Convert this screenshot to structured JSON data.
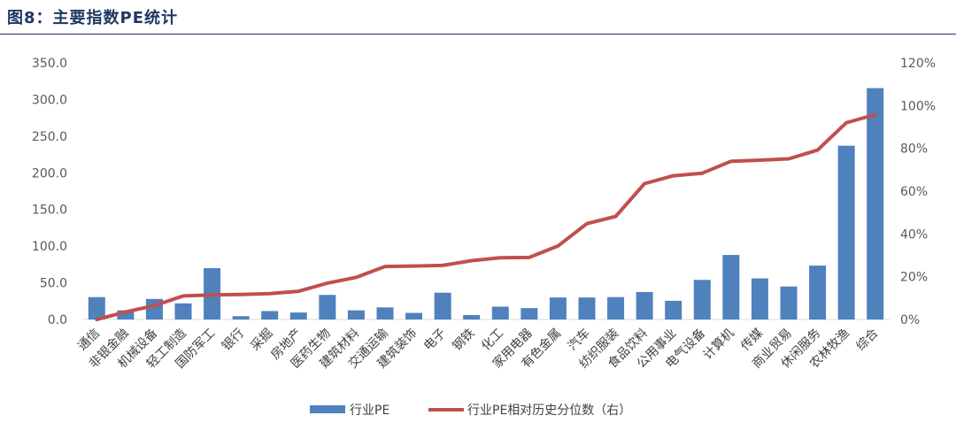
{
  "figure": {
    "title": "图8：主要指数PE统计"
  },
  "chart_data": {
    "type": "bar",
    "categories": [
      "通信",
      "非银金融",
      "机械设备",
      "轻工制造",
      "国防军工",
      "银行",
      "采掘",
      "房地产",
      "医药生物",
      "建筑材料",
      "交通运输",
      "建筑装饰",
      "电子",
      "钢铁",
      "化工",
      "家用电器",
      "有色金属",
      "汽车",
      "纺织服装",
      "食品饮料",
      "公用事业",
      "电气设备",
      "计算机",
      "传媒",
      "商业贸易",
      "休闲服务",
      "农林牧渔",
      "综合"
    ],
    "series": [
      {
        "name": "行业PE",
        "type": "bar",
        "axis": "left",
        "color": "#4f81bd",
        "values": [
          30.5,
          12.5,
          28.0,
          22.0,
          70.0,
          4.5,
          11.5,
          9.5,
          33.5,
          12.5,
          16.5,
          9.0,
          36.5,
          6.0,
          17.5,
          15.5,
          30.0,
          30.0,
          30.5,
          37.5,
          25.5,
          54.0,
          88.0,
          56.0,
          45.0,
          73.5,
          237.0,
          315.5
        ]
      },
      {
        "name": "行业PE相对历史分位数（右）",
        "type": "line",
        "axis": "right",
        "color": "#c0504d",
        "values": [
          0.0,
          3.5,
          6.5,
          11.0,
          11.5,
          11.7,
          12.1,
          13.2,
          17.0,
          19.7,
          24.8,
          25.0,
          25.3,
          27.5,
          28.9,
          29.0,
          34.4,
          44.8,
          48.2,
          63.5,
          67.2,
          68.4,
          74.0,
          74.5,
          75.1,
          79.2,
          92.0,
          95.8
        ]
      }
    ],
    "y_left": {
      "min": 0,
      "max": 350,
      "ticks": [
        "0.0",
        "50.0",
        "100.0",
        "150.0",
        "200.0",
        "250.0",
        "300.0",
        "350.0"
      ]
    },
    "y_right": {
      "min": 0,
      "max": 120,
      "ticks": [
        "0%",
        "20%",
        "40%",
        "60%",
        "80%",
        "100%",
        "120%"
      ]
    },
    "legend": {
      "position": "bottom",
      "items": [
        "行业PE",
        "行业PE相对历史分位数（右）"
      ]
    },
    "grid": false
  }
}
